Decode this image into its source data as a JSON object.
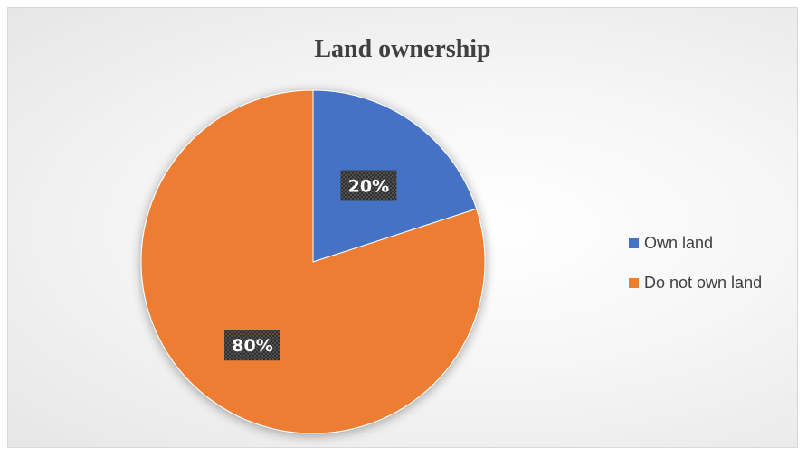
{
  "chart_data": {
    "type": "pie",
    "title": "Land ownership",
    "categories": [
      "Own land",
      "Do not own land"
    ],
    "values": [
      20,
      80
    ],
    "labels": [
      "20%",
      "80%"
    ],
    "colors": [
      "#4472c4",
      "#ed7d31"
    ],
    "legend_position": "right"
  }
}
